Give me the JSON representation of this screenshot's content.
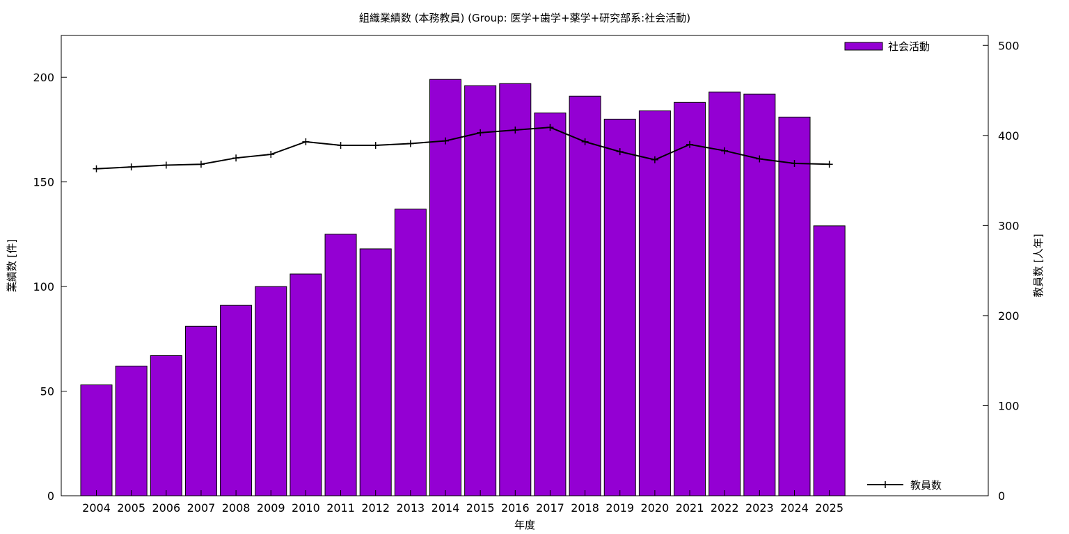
{
  "chart_data": {
    "type": "bar",
    "title": "組織業績数 (本務教員) (Group: 医学+歯学+薬学+研究部系:社会活動)",
    "xlabel": "年度",
    "ylabel": "業績数 [件]",
    "y2label": "教員数 [人年]",
    "categories": [
      "2004",
      "2005",
      "2006",
      "2007",
      "2008",
      "2009",
      "2010",
      "2011",
      "2012",
      "2013",
      "2014",
      "2015",
      "2016",
      "2017",
      "2018",
      "2019",
      "2020",
      "2021",
      "2022",
      "2023",
      "2024",
      "2025"
    ],
    "ylim": [
      0,
      220
    ],
    "y2lim": [
      0,
      511
    ],
    "yticks": [
      0,
      50,
      100,
      150,
      200
    ],
    "y2ticks": [
      0,
      100,
      200,
      300,
      400,
      500
    ],
    "series": [
      {
        "name": "社会活動",
        "type": "bar",
        "axis": "left",
        "color": "#9400d3",
        "values": [
          53,
          62,
          67,
          81,
          91,
          100,
          106,
          125,
          118,
          137,
          199,
          196,
          197,
          183,
          191,
          180,
          184,
          188,
          193,
          192,
          181,
          129
        ]
      },
      {
        "name": "教員数",
        "type": "line",
        "axis": "right",
        "color": "#000000",
        "values": [
          363,
          365,
          367,
          368,
          375,
          379,
          393,
          389,
          389,
          391,
          394,
          403,
          406,
          409,
          393,
          382,
          373,
          390,
          383,
          374,
          369,
          368
        ]
      }
    ],
    "legend": [
      "top-right",
      "bottom-right"
    ],
    "grid": false
  }
}
